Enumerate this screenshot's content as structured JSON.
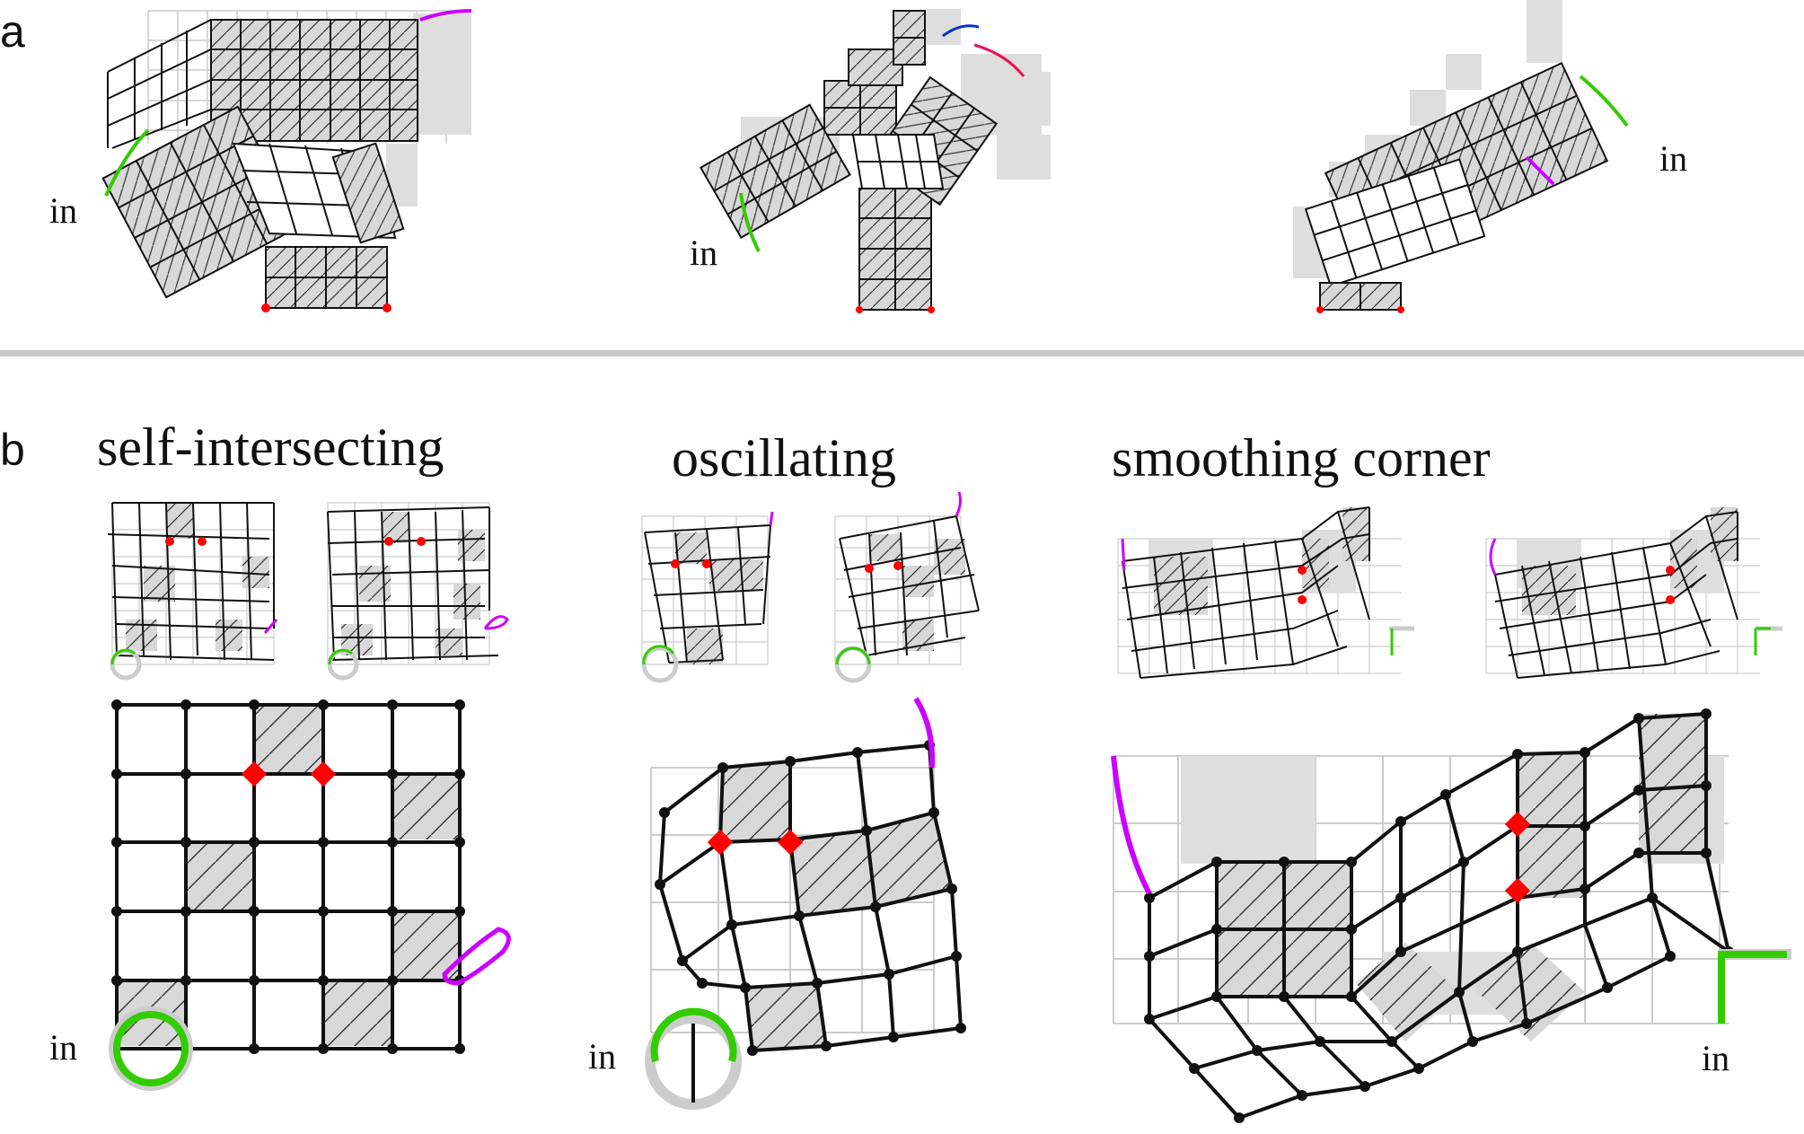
{
  "panel_a": {
    "letter": "a",
    "in_labels": [
      "in",
      "in",
      "in"
    ]
  },
  "panel_b": {
    "letter": "b",
    "titles": [
      "self-intersecting",
      "oscillating",
      "smoothing corner"
    ],
    "in_labels": [
      "in",
      "in",
      "in"
    ]
  },
  "colors": {
    "accent_purple": "#cc00ff",
    "accent_green": "#33cc00",
    "accent_red": "#ff0000",
    "accent_blue": "#0033cc",
    "accent_pink": "#ee1155",
    "hatched_fill": "#d8d8d8",
    "shadow_fill": "#dedede",
    "grid_grey": "#cccccc"
  }
}
